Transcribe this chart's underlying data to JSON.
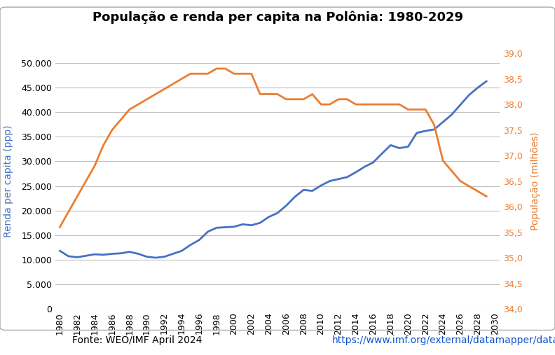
{
  "title": "População e renda per capita na Polônia: 1980-2029",
  "xlabel": "",
  "ylabel_left": "Renda per capita (ppp)",
  "ylabel_right": "População (milhões)",
  "ylim_left": [
    0,
    52000
  ],
  "ylim_right": [
    34.0,
    39.0
  ],
  "yticks_left": [
    0,
    5000,
    10000,
    15000,
    20000,
    25000,
    30000,
    35000,
    40000,
    45000,
    50000
  ],
  "yticks_right": [
    34.0,
    34.5,
    35.0,
    35.5,
    36.0,
    36.5,
    37.0,
    37.5,
    38.0,
    38.5,
    39.0
  ],
  "color_renda": "#4472C4",
  "color_pop": "#ED7D31",
  "legend_labels": [
    "Renda per capita",
    "População"
  ],
  "source_text": "Fonte: WEO/IMF April 2024 ",
  "source_url": "https://www.imf.org/external/datamapper/datasets/WEO",
  "years": [
    1980,
    1981,
    1982,
    1983,
    1984,
    1985,
    1986,
    1987,
    1988,
    1989,
    1990,
    1991,
    1992,
    1993,
    1994,
    1995,
    1996,
    1997,
    1998,
    1999,
    2000,
    2001,
    2002,
    2003,
    2004,
    2005,
    2006,
    2007,
    2008,
    2009,
    2010,
    2011,
    2012,
    2013,
    2014,
    2015,
    2016,
    2017,
    2018,
    2019,
    2020,
    2021,
    2022,
    2023,
    2024,
    2025,
    2026,
    2027,
    2028,
    2029
  ],
  "renda": [
    11800,
    10700,
    10500,
    10800,
    11100,
    11000,
    11200,
    11300,
    11600,
    11200,
    10600,
    10400,
    10600,
    11200,
    11800,
    13000,
    14000,
    15700,
    16500,
    16600,
    16700,
    17200,
    17000,
    17500,
    18700,
    19500,
    21000,
    22800,
    24200,
    24000,
    25100,
    26000,
    26400,
    26800,
    27800,
    28900,
    29800,
    31600,
    33300,
    32700,
    33000,
    35800,
    36200,
    36500,
    38000,
    39500,
    41500,
    43500,
    45000,
    46300
  ],
  "population": [
    35.6,
    35.9,
    36.2,
    36.5,
    36.8,
    37.2,
    37.5,
    37.7,
    37.9,
    38.0,
    38.1,
    38.2,
    38.3,
    38.4,
    38.5,
    38.6,
    38.6,
    38.6,
    38.7,
    38.7,
    38.6,
    38.6,
    38.6,
    38.2,
    38.2,
    38.2,
    38.1,
    38.1,
    38.1,
    38.2,
    38.0,
    38.0,
    38.1,
    38.1,
    38.0,
    38.0,
    38.0,
    38.0,
    38.0,
    38.0,
    37.9,
    37.9,
    37.9,
    37.6,
    36.9,
    36.7,
    36.5,
    36.4,
    36.3,
    36.2
  ],
  "background_color": "#FFFFFF",
  "plot_area_color": "#FFFFFF",
  "grid_color": "#C0C0C0",
  "title_fontsize": 13,
  "axis_label_fontsize": 10,
  "tick_fontsize": 9
}
